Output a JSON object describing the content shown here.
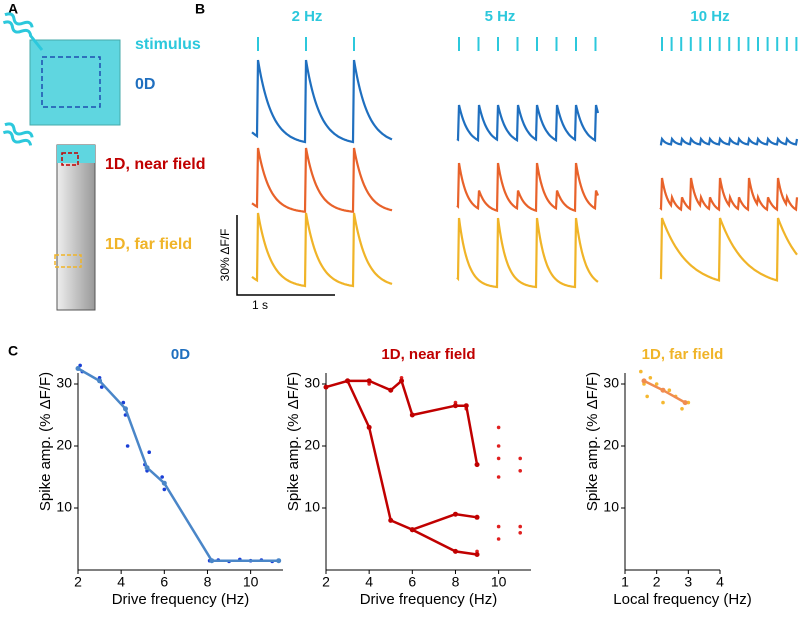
{
  "panel_labels": [
    "A",
    "B",
    "C"
  ],
  "panel_a": {
    "stimulus_label": "stimulus",
    "labels": [
      "0D",
      "1D, near field",
      "1D, far field"
    ]
  },
  "panel_b": {
    "frequencies": [
      "2 Hz",
      "5 Hz",
      "10 Hz"
    ],
    "scale_y": "30% ΔF/F",
    "scale_x": "1 s"
  },
  "chart_data": [
    {
      "type": "line",
      "title": "0D",
      "title_color": "#1f6fbf",
      "x_label": "Drive frequency (Hz)",
      "y_label": "Spike amp. (% ΔF/F)",
      "xlim": [
        2,
        11.5
      ],
      "ylim": [
        0,
        35
      ],
      "xticks": [
        2,
        4,
        6,
        8,
        10
      ],
      "yticks": [
        10,
        20,
        30
      ],
      "series": [
        {
          "style": "scatter",
          "color": "#1a3fd6",
          "x": [
            2.1,
            2.2,
            3.0,
            3.1,
            4.1,
            4.2,
            4.3,
            5.1,
            5.2,
            5.3,
            5.9,
            6.0,
            8.1,
            8.5,
            9.0,
            9.5,
            10.0,
            10.5,
            11.0,
            11.3
          ],
          "values": [
            33,
            32,
            31,
            29.5,
            27,
            25,
            20,
            17,
            16,
            19,
            15,
            13,
            1.5,
            1.6,
            1.4,
            1.7,
            1.5,
            1.6,
            1.4,
            1.5
          ]
        },
        {
          "style": "line",
          "color": "#4a86c8",
          "x": [
            2,
            3,
            4.2,
            5.2,
            6,
            8.2,
            11.3
          ],
          "values": [
            32.5,
            30.5,
            26,
            16.5,
            14,
            1.5,
            1.5
          ]
        }
      ]
    },
    {
      "type": "line",
      "title": "1D, near field",
      "title_color": "#c00000",
      "x_label": "Drive frequency (Hz)",
      "y_label": "Spike amp. (% ΔF/F)",
      "xlim": [
        2,
        11.5
      ],
      "ylim": [
        0,
        35
      ],
      "xticks": [
        2,
        4,
        6,
        8,
        10
      ],
      "yticks": [
        10,
        20,
        30
      ],
      "series": [
        {
          "style": "scatter",
          "color": "#e02020",
          "x": [
            2,
            3,
            4,
            5,
            5.5,
            6,
            8,
            8.5,
            9,
            10,
            10,
            10,
            10,
            10,
            11,
            11,
            11,
            8,
            9,
            10,
            11
          ],
          "values": [
            29.5,
            30.5,
            30,
            29,
            31,
            25,
            27,
            26,
            17,
            23,
            20,
            18,
            15,
            7,
            18,
            16,
            6,
            9,
            3,
            5,
            7
          ]
        },
        {
          "style": "line",
          "color": "#c00000",
          "x": [
            2,
            3,
            4,
            5,
            5.5,
            6,
            8,
            8.5,
            9
          ],
          "values": [
            29.5,
            30.5,
            30.5,
            29,
            30.5,
            25,
            26.5,
            26.5,
            17
          ]
        },
        {
          "style": "line",
          "color": "#c00000",
          "x": [
            3,
            4,
            5,
            6,
            8,
            9
          ],
          "values": [
            30.5,
            23,
            8,
            6.5,
            9,
            8.5
          ]
        },
        {
          "style": "line",
          "color": "#c00000",
          "x": [
            6,
            8,
            9
          ],
          "values": [
            6.5,
            3,
            2.5
          ]
        }
      ]
    },
    {
      "type": "line",
      "title": "1D, far field",
      "title_color": "#f0b428",
      "x_label": "Local frequency (Hz)",
      "y_label": "Spike amp. (% ΔF/F)",
      "xlim": [
        1,
        4
      ],
      "ylim": [
        0,
        35
      ],
      "xticks": [
        1,
        2,
        3,
        4
      ],
      "yticks": [
        10,
        20,
        30
      ],
      "series": [
        {
          "style": "scatter",
          "color": "#f5b830",
          "x": [
            1.5,
            1.6,
            1.7,
            1.8,
            2.0,
            2.2,
            2.4,
            2.6,
            2.8,
            3.0
          ],
          "values": [
            32,
            30,
            28,
            31,
            30,
            27,
            29,
            28,
            26,
            27
          ]
        },
        {
          "style": "line",
          "color": "#f08c50",
          "x": [
            1.6,
            2.2,
            2.9
          ],
          "values": [
            30.5,
            29,
            27
          ]
        }
      ]
    }
  ]
}
